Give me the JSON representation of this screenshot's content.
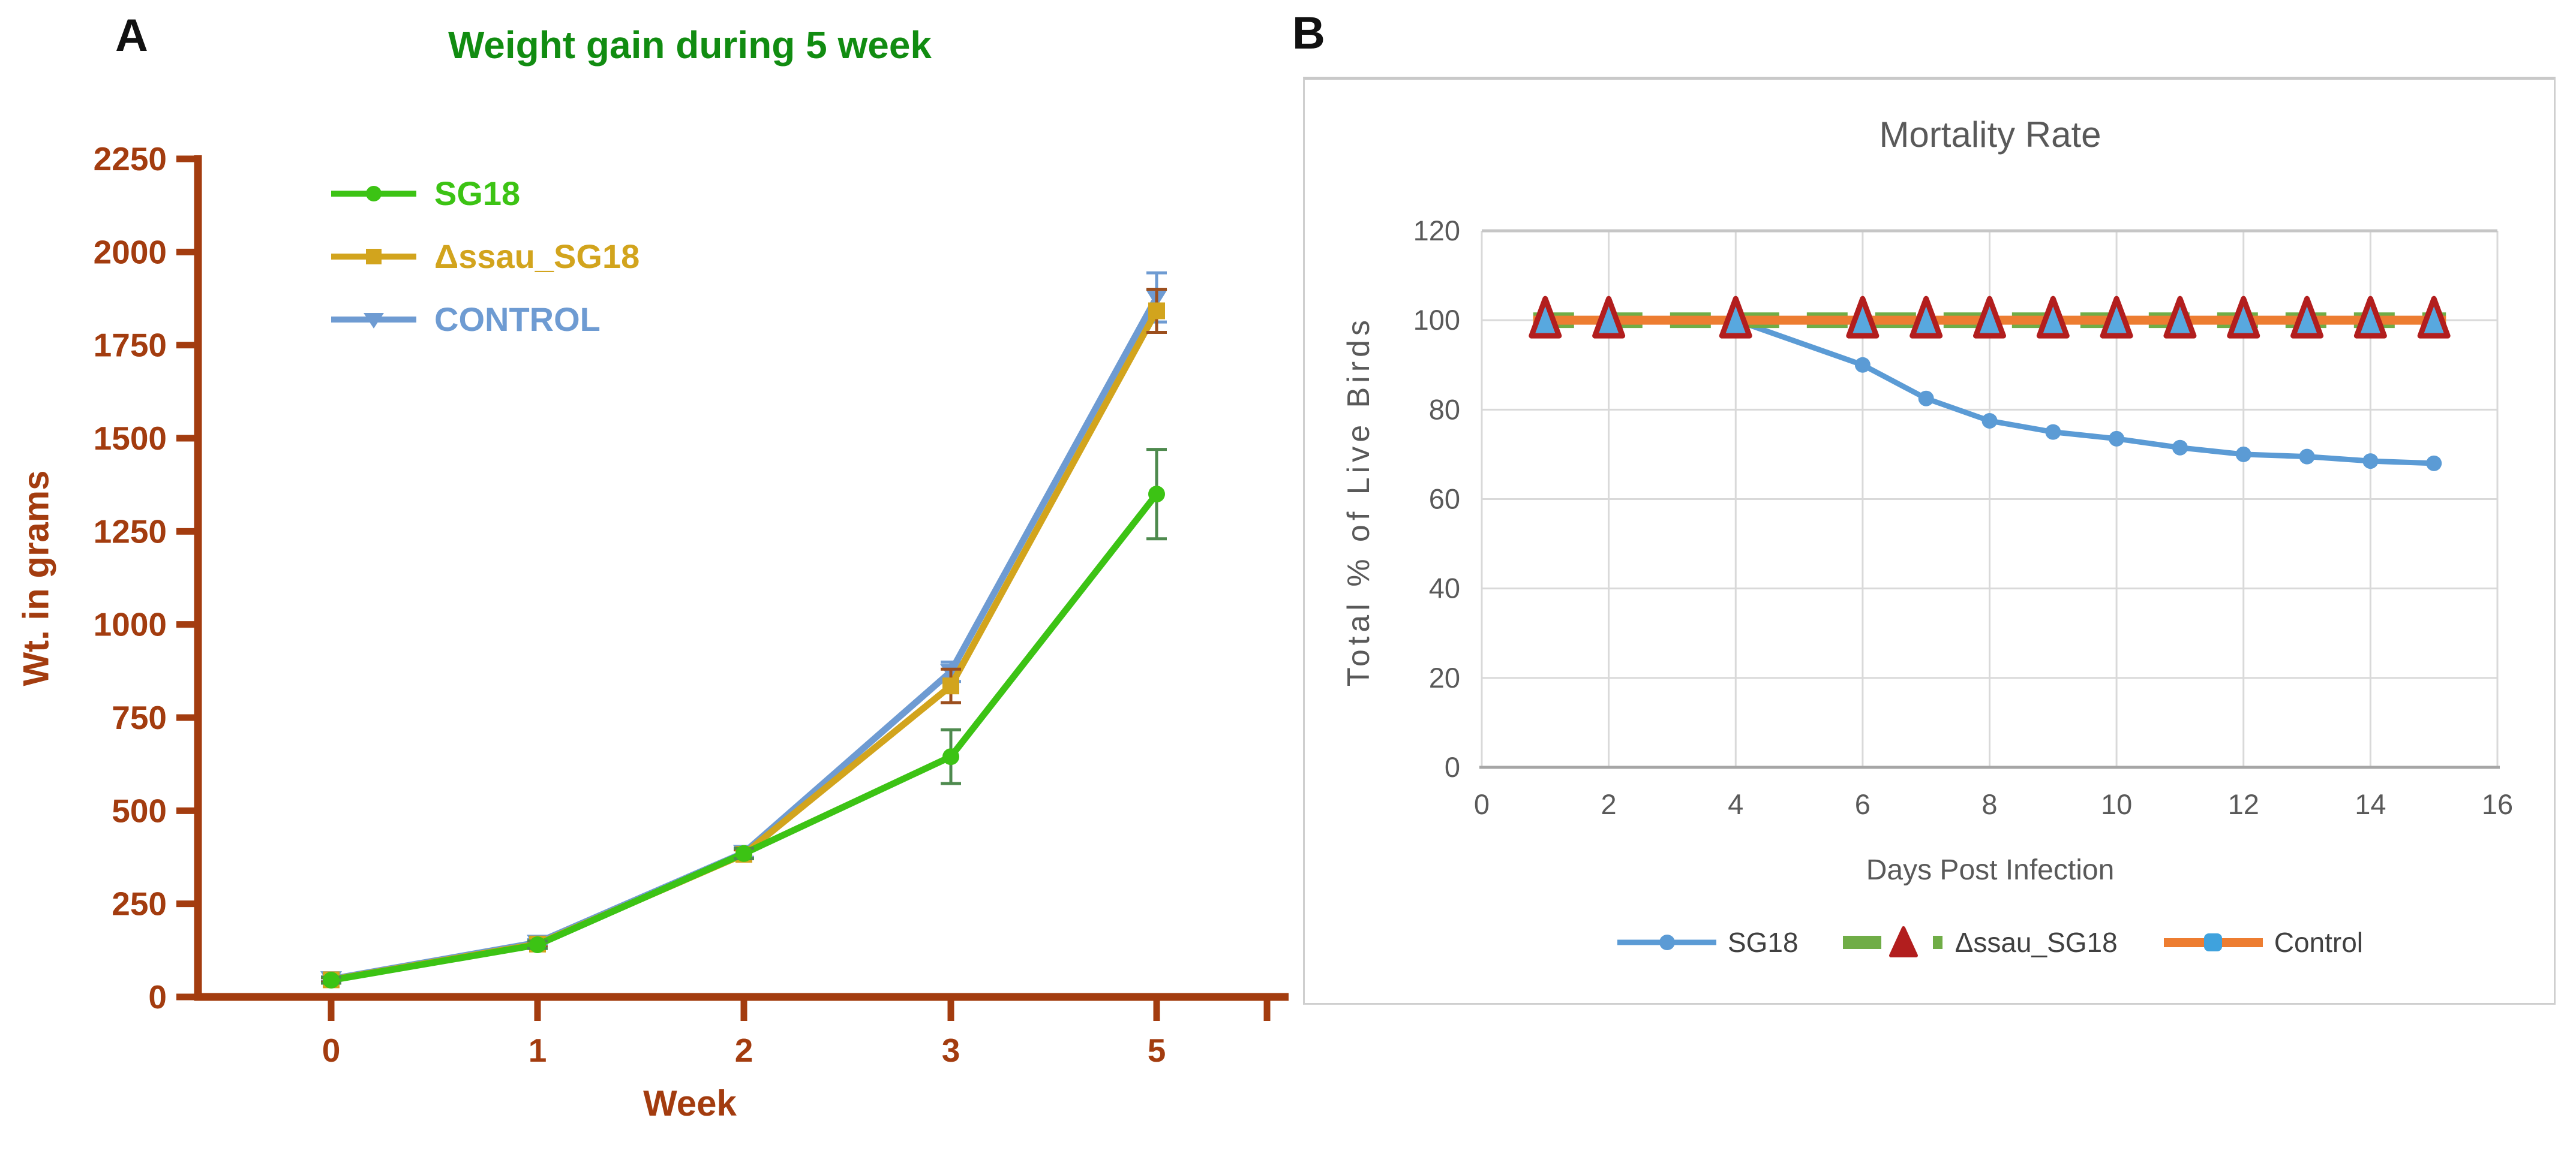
{
  "figure": {
    "panel_a_label": "A",
    "panel_b_label": "B"
  },
  "chart_data": [
    {
      "type": "line",
      "panel": "A",
      "title": "Weight gain during 5 week",
      "xlabel": "Week",
      "ylabel": "Wt. in grams",
      "categories": [
        "0",
        "1",
        "2",
        "3",
        "5"
      ],
      "ylim": [
        0,
        2250
      ],
      "ytick_step": 250,
      "grid": false,
      "legend_position": "top-left",
      "title_color": "#118C11",
      "axis_color": "#A33C0F",
      "series": [
        {
          "name": "CONTROL",
          "color": "#6E9BD2",
          "err_color": "#6E9BD2",
          "marker": "triangle-down",
          "values": [
            48,
            146,
            387,
            873,
            1878
          ],
          "errors": [
            6,
            8,
            12,
            26,
            66
          ]
        },
        {
          "name": "Δssau_SG18",
          "color": "#D2A41D",
          "err_color": "#9C4F1E",
          "marker": "square",
          "values": [
            46,
            142,
            383,
            835,
            1842
          ],
          "errors": [
            6,
            8,
            12,
            45,
            58
          ]
        },
        {
          "name": "SG18",
          "color": "#3CC314",
          "err_color": "#4E8A4E",
          "marker": "circle",
          "values": [
            45,
            140,
            385,
            645,
            1350
          ],
          "errors": [
            8,
            10,
            14,
            72,
            120
          ]
        }
      ],
      "legend_order": [
        "SG18",
        "Δssau_SG18",
        "CONTROL"
      ]
    },
    {
      "type": "line",
      "panel": "B",
      "title": "Mortality Rate",
      "xlabel": "Days Post Infection",
      "ylabel": "Total % of Live Birds",
      "xlim": [
        0,
        16
      ],
      "xtick_step": 2,
      "ylim": [
        0,
        120
      ],
      "ytick_step": 20,
      "grid": true,
      "legend_position": "bottom",
      "text_color": "#595959",
      "grid_color": "#D9D9D9",
      "axis_line_color": "#A6A6A6",
      "x": [
        1,
        2,
        4,
        6,
        7,
        8,
        9,
        10,
        11,
        12,
        13,
        14,
        15
      ],
      "series": [
        {
          "name": "SG18",
          "color": "#5B9BD5",
          "marker": "circle",
          "style": "solid",
          "values": [
            100,
            100,
            100,
            90,
            82.5,
            77.5,
            75,
            73.5,
            71.5,
            70,
            69.5,
            68.5,
            68
          ]
        },
        {
          "name": "Δssau_SG18",
          "color": "#70AD47",
          "marker": "triangle",
          "marker_fill": "#58A8DF",
          "marker_stroke": "#B21E1E",
          "style": "dashed",
          "values": [
            100,
            100,
            100,
            100,
            100,
            100,
            100,
            100,
            100,
            100,
            100,
            100,
            100
          ]
        },
        {
          "name": "Control",
          "color": "#ED7D31",
          "marker": "square",
          "marker_fill": "#3FA2DD",
          "style": "solid-thick",
          "values": [
            100,
            100,
            100,
            100,
            100,
            100,
            100,
            100,
            100,
            100,
            100,
            100,
            100
          ]
        }
      ],
      "legend_order": [
        "SG18",
        "Δssau_SG18",
        "Control"
      ]
    }
  ]
}
